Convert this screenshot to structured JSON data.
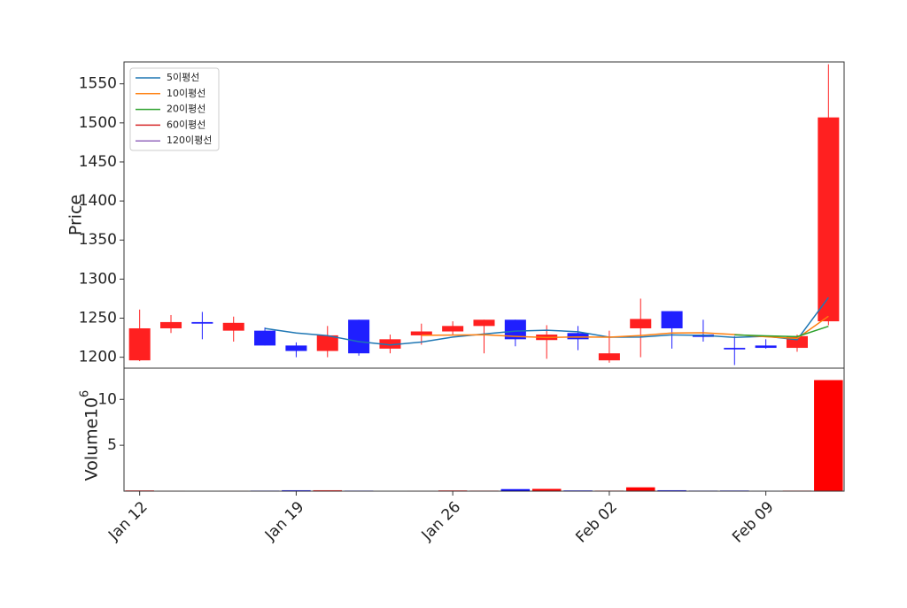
{
  "chart_data": [
    {
      "type": "candlestick",
      "ylabel": "Price",
      "categories": [
        "Jan 12",
        null,
        null,
        null,
        null,
        "Jan 19",
        null,
        null,
        null,
        null,
        "Jan 26",
        null,
        null,
        null,
        null,
        "Feb 02",
        null,
        null,
        null,
        null,
        "Feb 09",
        null,
        null
      ],
      "open": [
        1196,
        1237,
        1245,
        1234,
        1234,
        1215,
        1208,
        1248,
        1211,
        1228,
        1233,
        1240,
        1248,
        1222,
        1231,
        1196,
        1237,
        1259,
        1229,
        1212,
        1215,
        1212,
        1246
      ],
      "high": [
        1261,
        1254,
        1258,
        1252,
        1238,
        1219,
        1240,
        1248,
        1229,
        1243,
        1246,
        1248,
        1248,
        1241,
        1240,
        1234,
        1275,
        1259,
        1248,
        1227,
        1223,
        1229,
        1575
      ],
      "low": [
        1195,
        1231,
        1223,
        1220,
        1215,
        1200,
        1200,
        1202,
        1205,
        1216,
        1229,
        1205,
        1214,
        1198,
        1209,
        1193,
        1200,
        1211,
        1220,
        1190,
        1211,
        1207,
        1241
      ],
      "close": [
        1237,
        1245,
        1243,
        1244,
        1215,
        1208,
        1228,
        1205,
        1223,
        1233,
        1240,
        1248,
        1223,
        1229,
        1223,
        1205,
        1249,
        1237,
        1226,
        1210,
        1212,
        1227,
        1507
      ],
      "up_color": "#ff2020",
      "down_color": "#1f1fff",
      "ylim": [
        1186,
        1578
      ],
      "yticks": [
        1200,
        1250,
        1300,
        1350,
        1400,
        1450,
        1500,
        1550
      ],
      "legend": "upper left",
      "series": [
        {
          "name": "5이평선",
          "color": "#1f77b4",
          "values": [
            null,
            null,
            null,
            null,
            1236.8,
            1231,
            1227.6,
            1220,
            1215.8,
            1219.4,
            1225.8,
            1229.8,
            1233.4,
            1234.6,
            1232.6,
            1225.6,
            1225.8,
            1228.6,
            1228,
            1225.4,
            1226.8,
            1222.4,
            1276.4
          ]
        },
        {
          "name": "10이평선",
          "color": "#ff7f0e",
          "values": [
            null,
            null,
            null,
            null,
            null,
            null,
            null,
            null,
            null,
            1228.1,
            1228.4,
            1228.7,
            1226.7,
            1225.2,
            1226,
            1225.7,
            1227.8,
            1231,
            1231.3,
            1229,
            1226.2,
            1224.1,
            1252.5
          ]
        },
        {
          "name": "20이평선",
          "color": "#2ca02c",
          "values": [
            null,
            null,
            null,
            null,
            null,
            null,
            null,
            null,
            null,
            null,
            null,
            null,
            null,
            null,
            null,
            null,
            null,
            null,
            null,
            1228.6,
            1227.3,
            1226.4,
            1239.6
          ]
        },
        {
          "name": "60이평선",
          "color": "#d62728",
          "values": [
            null,
            null,
            null,
            null,
            null,
            null,
            null,
            null,
            null,
            null,
            null,
            null,
            null,
            null,
            null,
            null,
            null,
            null,
            null,
            null,
            null,
            null,
            null
          ]
        },
        {
          "name": "120이평선",
          "color": "#9467bd",
          "values": [
            null,
            null,
            null,
            null,
            null,
            null,
            null,
            null,
            null,
            null,
            null,
            null,
            null,
            null,
            null,
            null,
            null,
            null,
            null,
            null,
            null,
            null,
            null
          ]
        }
      ]
    },
    {
      "type": "bar",
      "ylabel": "Volume",
      "offset_base": "10",
      "offset_exponent": "6",
      "values": [
        0.08,
        0.05,
        0.04,
        0.05,
        0.06,
        0.1,
        0.1,
        0.06,
        0.04,
        0.05,
        0.08,
        0.06,
        0.22,
        0.25,
        0.08,
        0.06,
        0.42,
        0.1,
        0.06,
        0.07,
        0.05,
        0.06,
        12.1
      ],
      "up_color": "#ff0000",
      "down_color": "#0000ff",
      "ylim": [
        0,
        13.4
      ],
      "yticks": [
        5,
        10
      ]
    }
  ]
}
